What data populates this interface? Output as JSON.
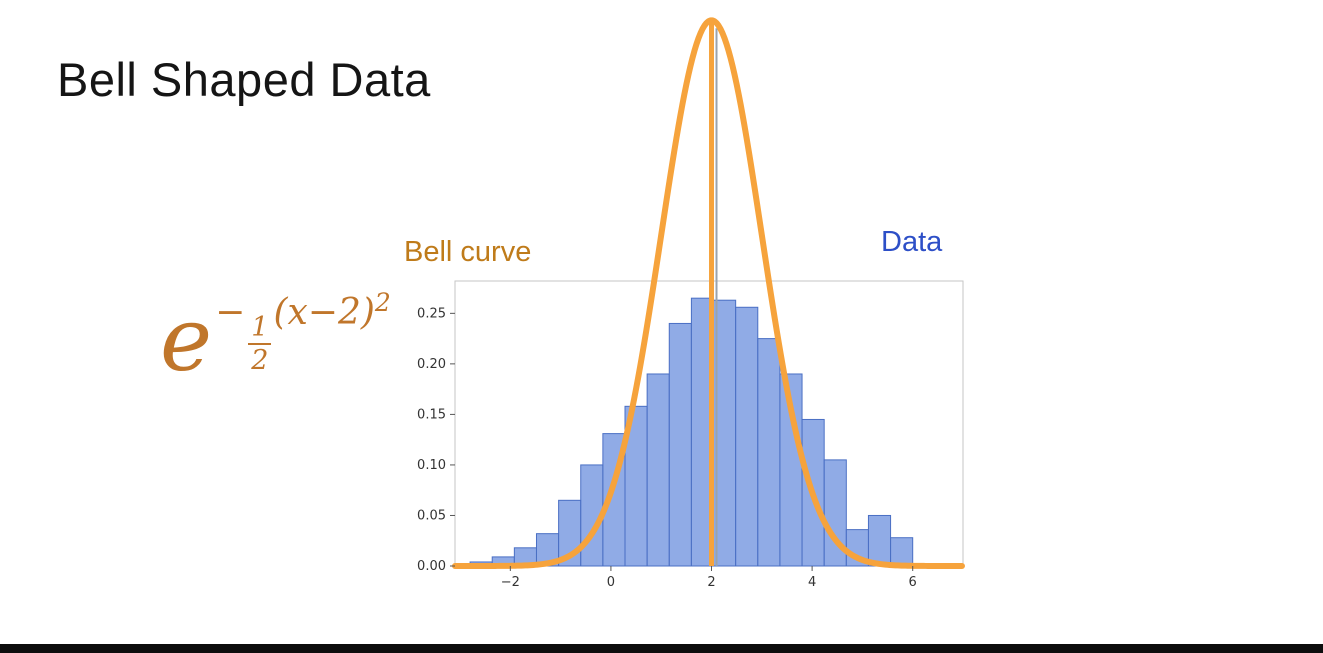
{
  "page": {
    "title": "Bell Shaped Data",
    "background": "#ffffff",
    "bottom_bar_color": "#0d0d0d"
  },
  "formula": {
    "base": "e",
    "exp_minus": "−",
    "frac_numerator": "1",
    "frac_denominator": "2",
    "exp_body": "(x−2)",
    "exp_power": "2",
    "color": "#c0762b"
  },
  "annotations": {
    "curve_label": {
      "text": "Bell curve",
      "color": "#bf7b1a"
    },
    "data_label": {
      "text": "Data",
      "color": "#2d4fc7"
    }
  },
  "chart_data": {
    "type": "bar",
    "subtype": "histogram_with_bell_curve_overlay",
    "histogram": {
      "bin_start": -2.8,
      "bin_width": 0.44,
      "values": [
        0.004,
        0.009,
        0.018,
        0.032,
        0.065,
        0.1,
        0.131,
        0.158,
        0.19,
        0.24,
        0.265,
        0.263,
        0.256,
        0.225,
        0.19,
        0.145,
        0.105,
        0.036,
        0.05,
        0.028
      ],
      "fill": "#7496e0",
      "fill_opacity": 0.8,
      "edge": "#4a6fc4"
    },
    "curve": {
      "expression": "exp(-1/2*(x-2)^2)",
      "mu": 2,
      "sigma": 1,
      "amplitude": 0.54,
      "color": "#f6a33c",
      "line_width": 6
    },
    "vline": {
      "x": 2,
      "color": "#f6a33c"
    },
    "axes": {
      "xlim": [
        -3.1,
        7.0
      ],
      "ylim": [
        0,
        0.282
      ],
      "x_ticks": [
        -2,
        0,
        2,
        4,
        6
      ],
      "x_tick_labels": [
        "−2",
        "0",
        "2",
        "4",
        "6"
      ],
      "y_ticks": [
        0,
        0.05,
        0.1,
        0.15,
        0.2,
        0.25
      ],
      "y_tick_labels": [
        "0.00",
        "0.05",
        "0.10",
        "0.15",
        "0.20",
        "0.25"
      ],
      "grid": false,
      "tick_color": "#333333",
      "spine_color": "#c6c6c6"
    }
  }
}
